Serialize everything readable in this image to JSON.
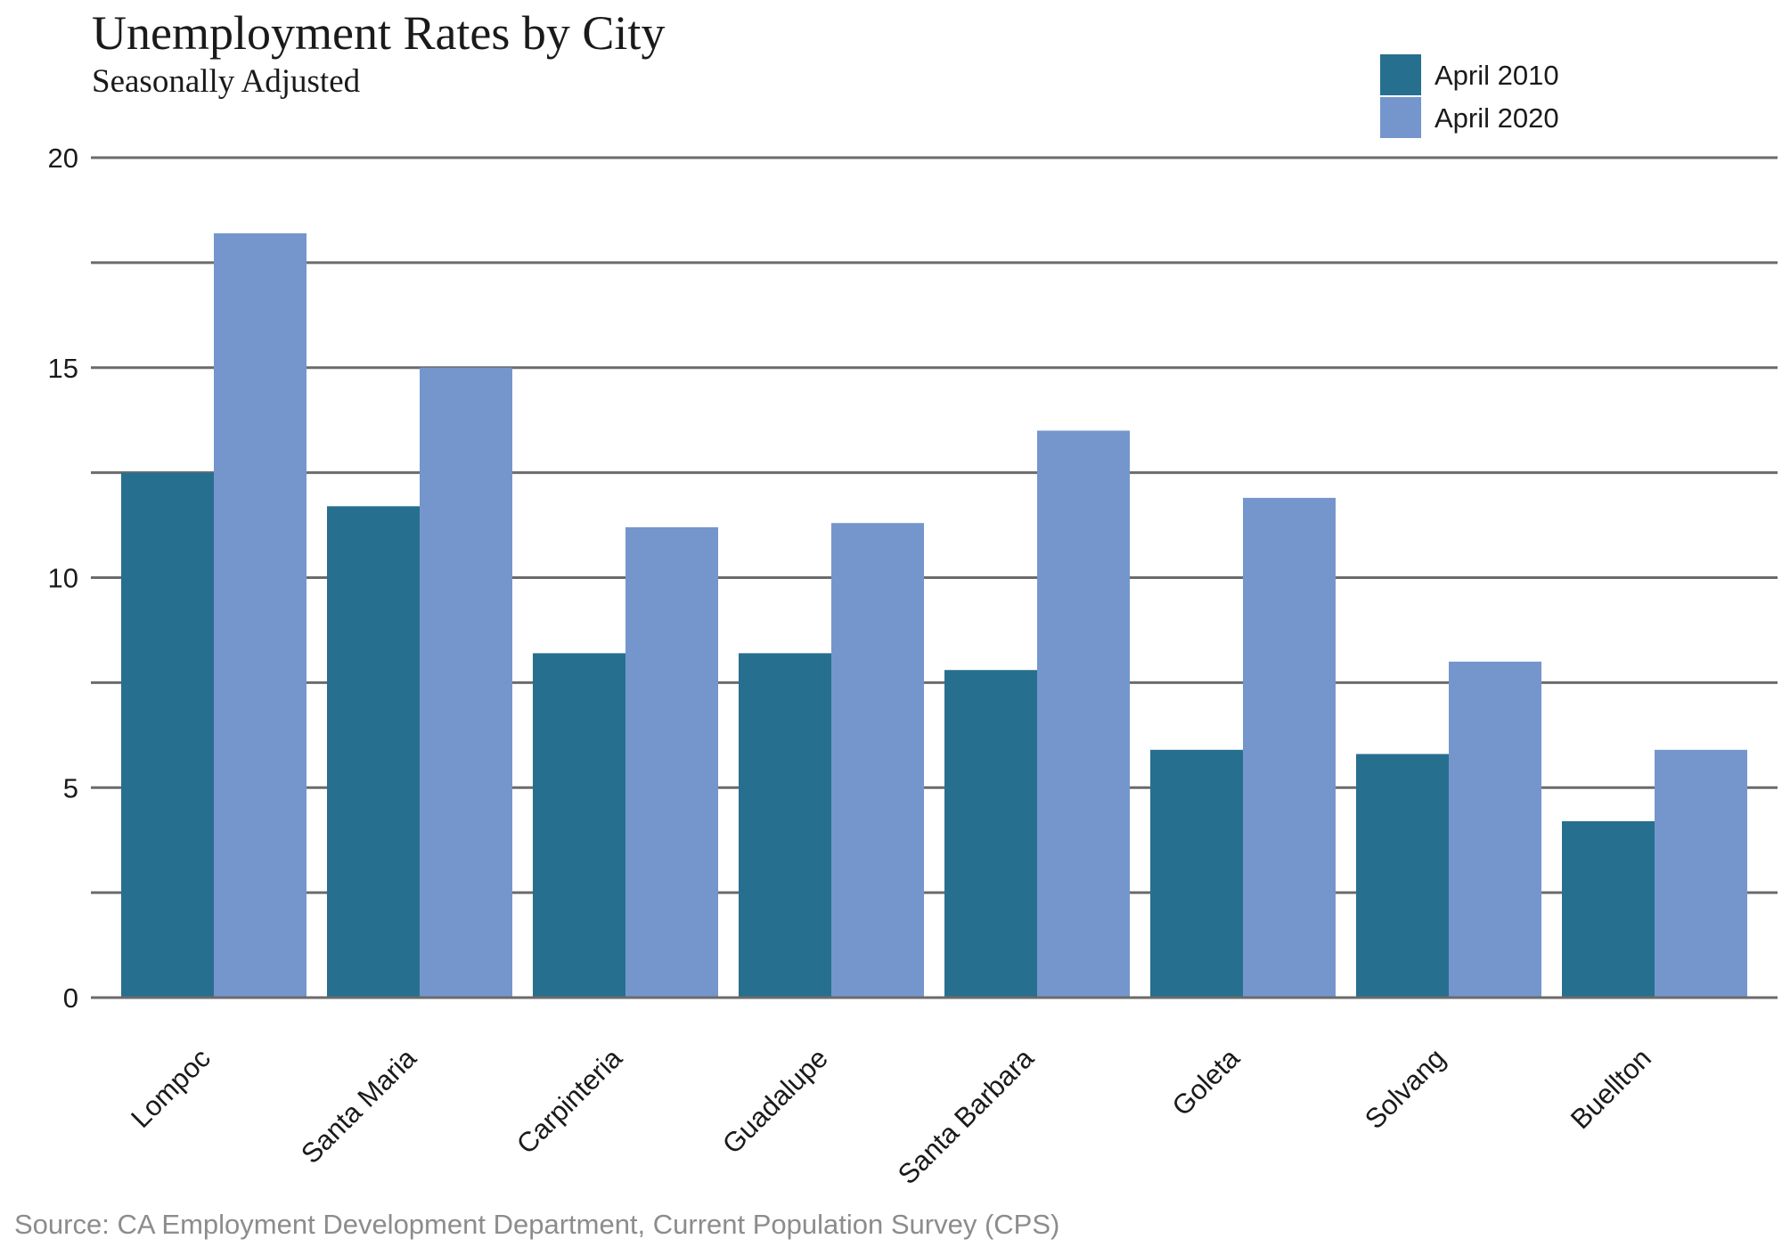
{
  "chart_data": {
    "type": "bar",
    "title": "Unemployment Rates by City",
    "subtitle": "Seasonally Adjusted",
    "source": "Source: CA Employment Development Department, Current Population Survey (CPS)",
    "categories": [
      "Lompoc",
      "Santa Maria",
      "Carpinteria",
      "Guadalupe",
      "Santa Barbara",
      "Goleta",
      "Solvang",
      "Buellton"
    ],
    "series": [
      {
        "name": "April 2010",
        "color": "#276f8f",
        "values": [
          12.5,
          11.7,
          8.2,
          8.2,
          7.8,
          5.9,
          5.8,
          4.2
        ]
      },
      {
        "name": "April 2020",
        "color": "#7596cd",
        "values": [
          18.2,
          15.0,
          11.2,
          11.3,
          13.5,
          11.9,
          8.0,
          5.9
        ]
      }
    ],
    "xlabel": "",
    "ylabel": "",
    "ylim": [
      0,
      20
    ],
    "yticks": [
      0,
      5,
      10,
      15,
      20
    ],
    "gridlines": [
      0,
      2.5,
      5,
      7.5,
      10,
      12.5,
      15,
      17.5,
      20
    ],
    "grid": true,
    "legend_position": "top-right",
    "grid_color": "#6b6b6b"
  }
}
